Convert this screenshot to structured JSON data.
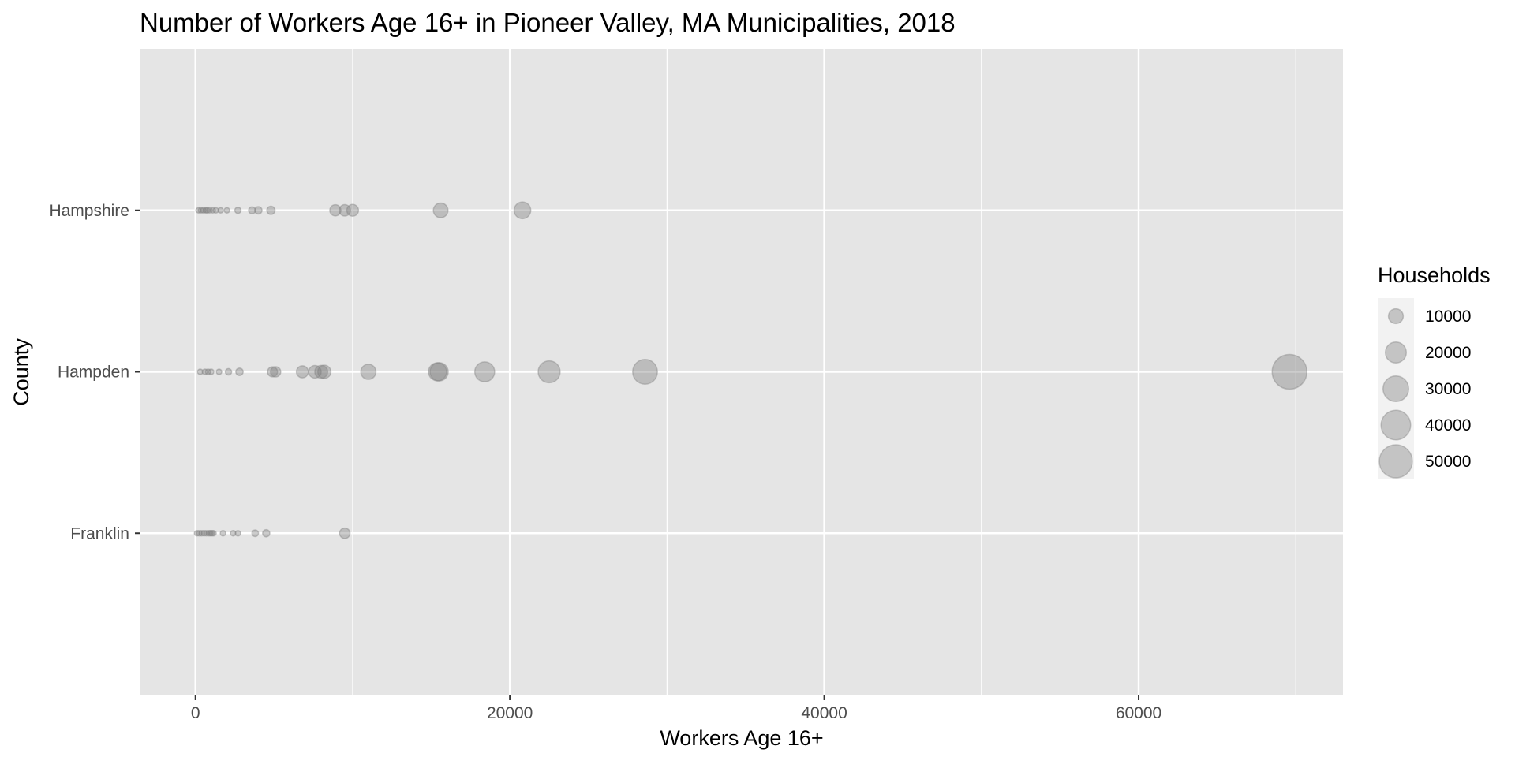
{
  "chart_data": {
    "type": "scatter",
    "title": "Number of Workers Age 16+ in Pioneer Valley, MA Municipalities, 2018",
    "xlabel": "Workers Age 16+",
    "ylabel": "County",
    "xlim": [
      -3500,
      73000
    ],
    "x_ticks": [
      0,
      20000,
      40000,
      60000
    ],
    "x_tick_labels": [
      "0",
      "20000",
      "40000",
      "60000"
    ],
    "categories": [
      "Franklin",
      "Hampden",
      "Hampshire"
    ],
    "grid": true,
    "point_color": "#7f7f7f",
    "point_opacity": 0.4,
    "panel_color": "#e5e5e5",
    "grid_color": "#ffffff",
    "legend": {
      "title": "Households",
      "placement": "right",
      "levels": [
        10000,
        20000,
        30000,
        40000,
        50000
      ],
      "labels": [
        "10000",
        "20000",
        "30000",
        "40000",
        "50000"
      ]
    },
    "series": [
      {
        "category": "Hampshire",
        "points": [
          {
            "x": 200,
            "households": 300
          },
          {
            "x": 350,
            "households": 400
          },
          {
            "x": 500,
            "households": 500
          },
          {
            "x": 650,
            "households": 550
          },
          {
            "x": 750,
            "households": 600
          },
          {
            "x": 900,
            "households": 700
          },
          {
            "x": 1100,
            "households": 800
          },
          {
            "x": 1300,
            "households": 900
          },
          {
            "x": 1600,
            "households": 1100
          },
          {
            "x": 2000,
            "households": 1300
          },
          {
            "x": 2700,
            "households": 1800
          },
          {
            "x": 3600,
            "households": 2300
          },
          {
            "x": 4000,
            "households": 2500
          },
          {
            "x": 4800,
            "households": 3100
          },
          {
            "x": 8900,
            "households": 5700
          },
          {
            "x": 9500,
            "households": 6000
          },
          {
            "x": 10000,
            "households": 6300
          },
          {
            "x": 15600,
            "households": 9800
          },
          {
            "x": 20800,
            "households": 12700
          }
        ]
      },
      {
        "category": "Hampden",
        "points": [
          {
            "x": 300,
            "households": 500
          },
          {
            "x": 600,
            "households": 700
          },
          {
            "x": 800,
            "households": 900
          },
          {
            "x": 1000,
            "households": 1000
          },
          {
            "x": 1500,
            "households": 1400
          },
          {
            "x": 2100,
            "households": 1900
          },
          {
            "x": 2800,
            "households": 2500
          },
          {
            "x": 4900,
            "households": 4600
          },
          {
            "x": 5100,
            "households": 4800
          },
          {
            "x": 6800,
            "households": 6500
          },
          {
            "x": 7600,
            "households": 7200
          },
          {
            "x": 8000,
            "households": 7600
          },
          {
            "x": 8200,
            "households": 7900
          },
          {
            "x": 11000,
            "households": 10500
          },
          {
            "x": 15400,
            "households": 15000
          },
          {
            "x": 15500,
            "households": 15200
          },
          {
            "x": 18400,
            "households": 18000
          },
          {
            "x": 22500,
            "households": 22000
          },
          {
            "x": 28600,
            "households": 28000
          },
          {
            "x": 69600,
            "households": 55000
          }
        ]
      },
      {
        "category": "Franklin",
        "points": [
          {
            "x": 100,
            "households": 150
          },
          {
            "x": 250,
            "households": 200
          },
          {
            "x": 400,
            "households": 250
          },
          {
            "x": 550,
            "households": 300
          },
          {
            "x": 700,
            "households": 350
          },
          {
            "x": 850,
            "households": 400
          },
          {
            "x": 950,
            "households": 450
          },
          {
            "x": 1050,
            "households": 500
          },
          {
            "x": 1150,
            "households": 550
          },
          {
            "x": 1750,
            "households": 900
          },
          {
            "x": 2400,
            "households": 1200
          },
          {
            "x": 2700,
            "households": 1400
          },
          {
            "x": 3800,
            "households": 2000
          },
          {
            "x": 4500,
            "households": 2400
          },
          {
            "x": 9500,
            "households": 5000
          }
        ]
      }
    ]
  }
}
